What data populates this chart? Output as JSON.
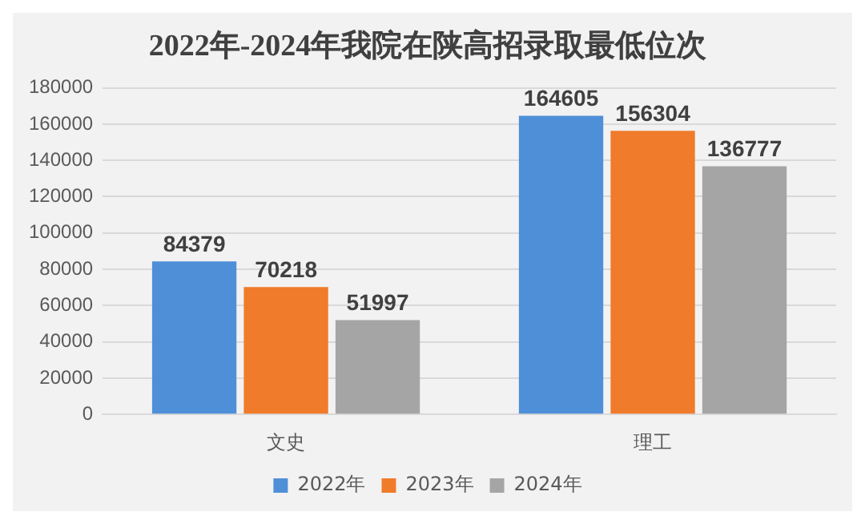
{
  "chart_data": {
    "type": "bar",
    "title": "2022年-2024年我院在陕高招录取最低位次",
    "categories": [
      "文史",
      "理工"
    ],
    "series": [
      {
        "name": "2022年",
        "color": "#4f8fd8",
        "values": [
          84379,
          164605
        ]
      },
      {
        "name": "2023年",
        "color": "#f07b2b",
        "values": [
          70218,
          156304
        ]
      },
      {
        "name": "2024年",
        "color": "#a5a5a5",
        "values": [
          51997,
          136777
        ]
      }
    ],
    "ylim": [
      0,
      180000
    ],
    "yticks": [
      0,
      20000,
      40000,
      60000,
      80000,
      100000,
      120000,
      140000,
      160000,
      180000
    ],
    "grid": "y",
    "legend": "bottom",
    "data_labels": true
  }
}
